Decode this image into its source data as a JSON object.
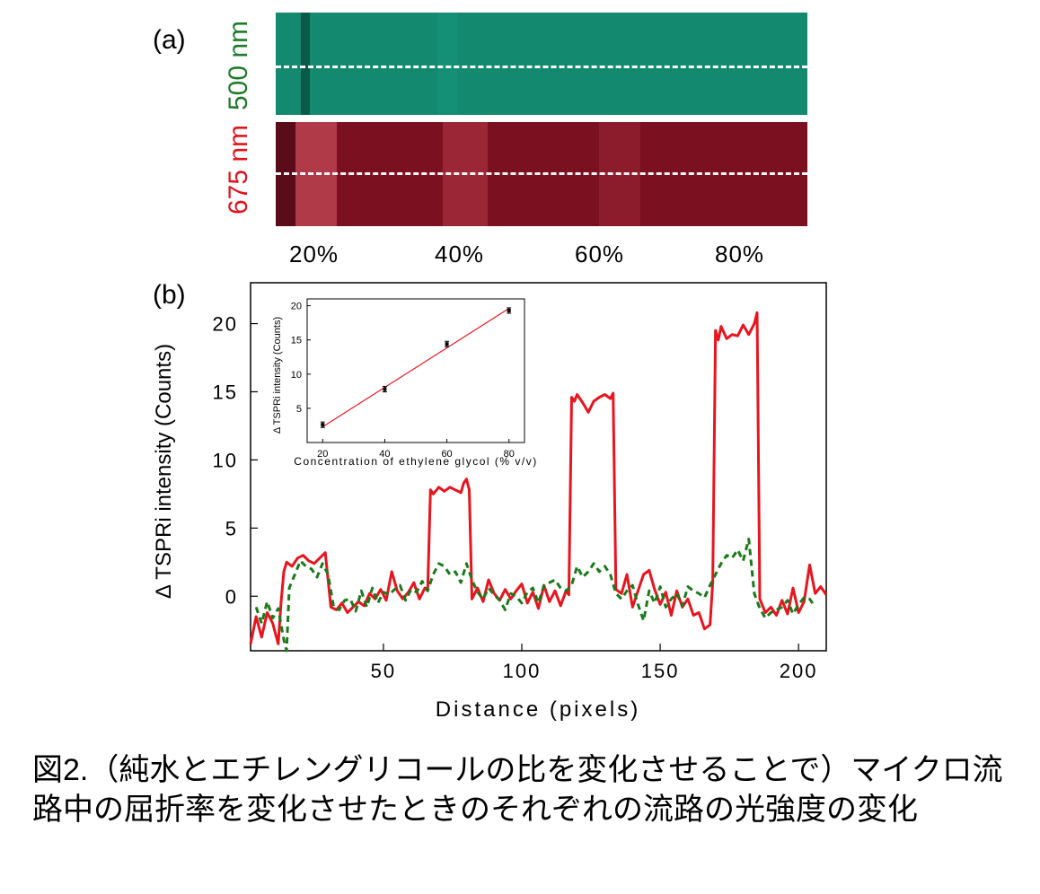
{
  "panel_a": {
    "label": "(a)",
    "wavelength_top": "500 nm",
    "wavelength_bottom": "675 nm",
    "concentrations": [
      "20%",
      "40%",
      "60%",
      "80%"
    ],
    "colors": {
      "green_label": "#1e7a2a",
      "red_label": "#e0141e",
      "green_strip": "#138a70",
      "red_strip": "#7a1020",
      "red_strip_light": "#a32838",
      "dash": "#ffffff"
    }
  },
  "panel_b": {
    "label": "(b)"
  },
  "chart_data": [
    {
      "type": "line",
      "xlabel": "Distance (pixels)",
      "ylabel": "Δ TSPRi intensity (Counts)",
      "xlim": [
        2,
        210
      ],
      "ylim": [
        -4,
        23
      ],
      "xticks": [
        50,
        100,
        150,
        200
      ],
      "yticks": [
        0,
        5,
        10,
        15,
        20
      ],
      "grid": false,
      "series": [
        {
          "color": "#e8141e",
          "style": "solid",
          "x": [
            2,
            4,
            6,
            8,
            10,
            12,
            13,
            14,
            15,
            17,
            19,
            21,
            23,
            25,
            27,
            29,
            31,
            33,
            35,
            37,
            39,
            41,
            43,
            45,
            47,
            49,
            51,
            53,
            55,
            57,
            59,
            61,
            63,
            65,
            66,
            67,
            68,
            70,
            72,
            74,
            76,
            78,
            79,
            80,
            81,
            82,
            84,
            86,
            88,
            90,
            92,
            94,
            96,
            98,
            100,
            102,
            104,
            106,
            108,
            110,
            112,
            114,
            116,
            117,
            118,
            119,
            120,
            122,
            124,
            126,
            128,
            130,
            132,
            133,
            134,
            136,
            138,
            140,
            142,
            144,
            146,
            148,
            150,
            152,
            154,
            156,
            158,
            160,
            162,
            164,
            166,
            168,
            169,
            170,
            171,
            172,
            174,
            176,
            178,
            180,
            182,
            184,
            185,
            186,
            188,
            190,
            192,
            194,
            196,
            198,
            200,
            202,
            204,
            206,
            208,
            210
          ],
          "y": [
            -3.5,
            -1.5,
            -3.0,
            -1.2,
            -2.0,
            -3.5,
            -0.5,
            1.8,
            2.5,
            2.2,
            2.8,
            3.0,
            2.6,
            2.4,
            2.8,
            3.2,
            -0.8,
            -1.0,
            -0.5,
            -1.2,
            -0.8,
            -0.4,
            -0.7,
            0.2,
            -0.2,
            0.5,
            -0.3,
            1.8,
            0.4,
            -0.2,
            0.3,
            1.0,
            -0.2,
            0.6,
            0.4,
            7.8,
            7.5,
            8.0,
            7.7,
            8.0,
            7.8,
            7.6,
            8.3,
            8.6,
            7.8,
            -0.2,
            0.6,
            -0.4,
            1.2,
            0.2,
            -0.3,
            0.5,
            -0.2,
            0.4,
            0.9,
            -0.5,
            0.3,
            -0.9,
            0.8,
            -0.4,
            0.4,
            -0.7,
            0.4,
            0.1,
            14.6,
            14.3,
            14.8,
            14.2,
            13.5,
            14.3,
            14.6,
            14.8,
            14.5,
            14.9,
            0.5,
            0.2,
            1.6,
            -0.8,
            0.4,
            1.6,
            1.9,
            0.5,
            -0.6,
            0.3,
            -1.4,
            0.4,
            -0.8,
            -0.2,
            -1.4,
            -1.2,
            -2.4,
            -2.1,
            1.0,
            19.5,
            18.8,
            19.8,
            18.9,
            19.2,
            19.1,
            19.9,
            19.2,
            20.0,
            20.8,
            -0.2,
            -1.2,
            -0.8,
            -1.4,
            -0.3,
            -1.3,
            0.6,
            -1.2,
            -0.4,
            2.3,
            0.2,
            0.7,
            0.1
          ]
        },
        {
          "color": "#1a7a1a",
          "style": "dashed",
          "x": [
            4,
            6,
            8,
            10,
            12,
            14,
            15,
            16,
            18,
            20,
            22,
            24,
            26,
            28,
            30,
            32,
            34,
            36,
            38,
            40,
            42,
            44,
            46,
            48,
            50,
            52,
            54,
            56,
            58,
            60,
            62,
            64,
            66,
            68,
            70,
            72,
            74,
            76,
            78,
            80,
            82,
            84,
            86,
            88,
            90,
            92,
            94,
            96,
            98,
            100,
            102,
            104,
            106,
            108,
            110,
            112,
            114,
            116,
            118,
            120,
            122,
            124,
            126,
            128,
            130,
            132,
            134,
            136,
            138,
            140,
            142,
            144,
            146,
            148,
            150,
            152,
            154,
            156,
            158,
            160,
            162,
            164,
            166,
            168,
            170,
            172,
            174,
            176,
            178,
            180,
            182,
            184,
            186,
            188,
            190,
            192,
            194,
            196,
            198,
            200,
            202,
            204,
            206
          ],
          "y": [
            -0.8,
            -2.0,
            -0.4,
            -1.6,
            -0.9,
            -3.2,
            -4.0,
            0.6,
            1.6,
            2.6,
            2.2,
            2.0,
            1.4,
            2.4,
            1.6,
            -0.8,
            -1.0,
            -0.3,
            -0.2,
            -1.1,
            0.4,
            -0.8,
            0.6,
            -0.5,
            0.3,
            0.1,
            0.5,
            0.8,
            -0.3,
            0.5,
            0.3,
            1.1,
            0.4,
            1.6,
            2.4,
            2.2,
            1.6,
            1.8,
            1.0,
            2.4,
            1.2,
            0.3,
            -0.2,
            0.6,
            0.1,
            -0.3,
            -1.0,
            0.2,
            0.0,
            -0.5,
            0.3,
            0.6,
            -0.5,
            0.8,
            1.0,
            1.2,
            0.6,
            0.4,
            0.8,
            2.2,
            1.4,
            1.8,
            2.4,
            1.8,
            2.2,
            1.6,
            0.2,
            -0.2,
            0.4,
            0.8,
            -0.6,
            -1.8,
            0.4,
            -0.5,
            0.7,
            -0.8,
            -0.2,
            0.2,
            -0.7,
            0.7,
            0.4,
            0.2,
            -0.1,
            0.8,
            1.6,
            2.4,
            3.0,
            2.8,
            3.4,
            2.6,
            4.2,
            0.2,
            -0.9,
            -1.6,
            -1.2,
            -1.0,
            -0.8,
            -0.3,
            -1.3,
            -0.6,
            -0.1,
            -0.2,
            -0.8
          ]
        }
      ]
    },
    {
      "type": "scatter",
      "xlabel": "Concentration of ethylene glycol (% v/v)",
      "ylabel": "Δ TSPRi intensity (Counts)",
      "xlim": [
        15,
        85
      ],
      "ylim": [
        0,
        21
      ],
      "xticks": [
        20,
        40,
        60,
        80
      ],
      "yticks": [
        5,
        10,
        15,
        20
      ],
      "x": [
        20,
        40,
        60,
        80
      ],
      "y": [
        2.6,
        7.8,
        14.4,
        19.3
      ],
      "yerr": [
        0.4,
        0.4,
        0.4,
        0.4
      ],
      "fit_line": {
        "x": [
          20,
          80
        ],
        "y": [
          2.3,
          19.6
        ],
        "color": "#e8141e"
      }
    }
  ],
  "caption": "図2.（純水とエチレングリコールの比を変化させることで）マイクロ流路中の屈折率を変化させたときのそれぞれの流路の光強度の変化"
}
